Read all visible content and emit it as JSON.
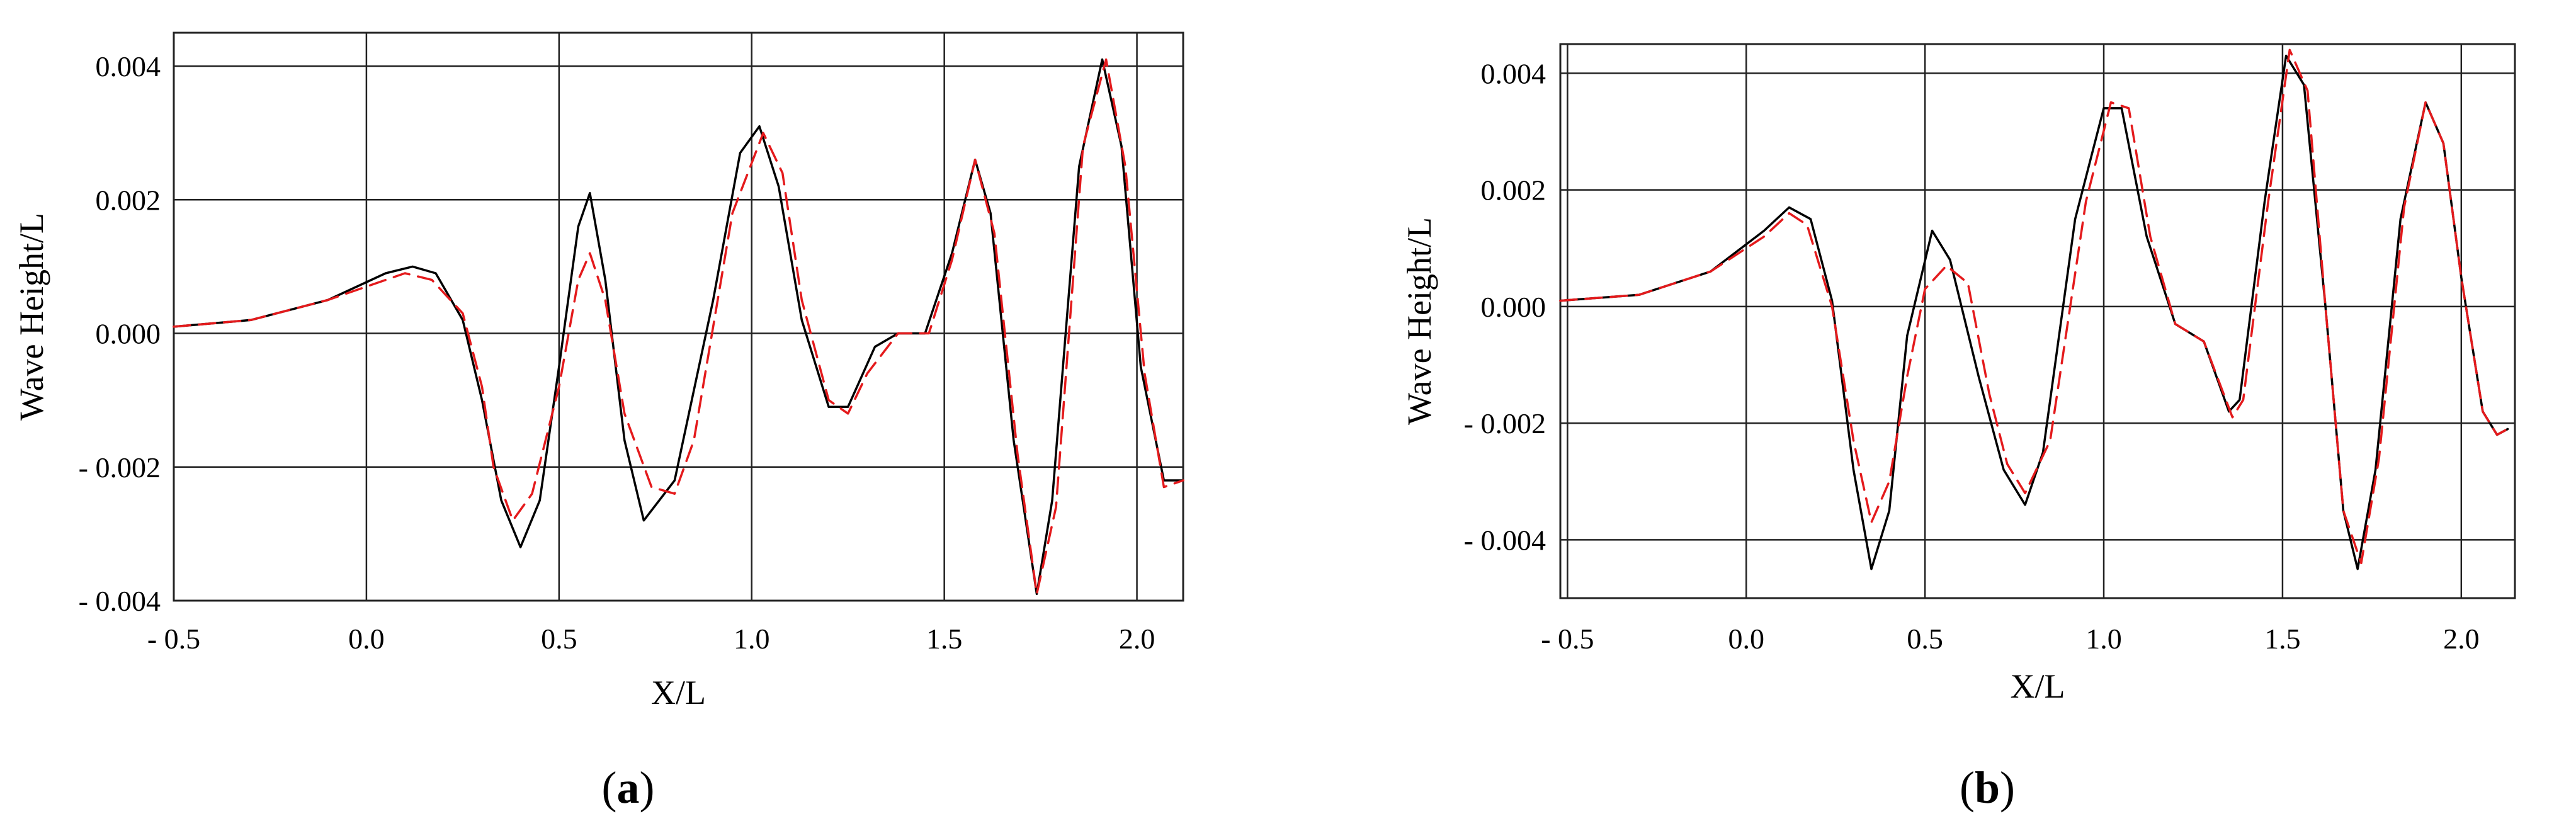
{
  "chart_data": [
    {
      "type": "line",
      "panel_label": "a",
      "xlabel": "X/L",
      "ylabel": "Wave Height/L",
      "xlim": [
        -0.5,
        2.12
      ],
      "ylim": [
        -0.004,
        0.0045
      ],
      "x_ticks": [
        -0.5,
        0.0,
        0.5,
        1.0,
        1.5,
        2.0
      ],
      "x_tick_labels": [
        "- 0.5",
        "0.0",
        "0.5",
        "1.0",
        "1.5",
        "2.0"
      ],
      "y_ticks": [
        -0.004,
        -0.002,
        0.0,
        0.002,
        0.004
      ],
      "y_tick_labels": [
        "- 0.004",
        "- 0.002",
        "0.000",
        "0.002",
        "0.004"
      ],
      "grid": true,
      "series": [
        {
          "color": "#000000",
          "dash": "solid",
          "points": [
            [
              -0.5,
              0.0001
            ],
            [
              -0.3,
              0.0002
            ],
            [
              -0.1,
              0.0005
            ],
            [
              0.05,
              0.0009
            ],
            [
              0.12,
              0.001
            ],
            [
              0.18,
              0.0009
            ],
            [
              0.25,
              0.0002
            ],
            [
              0.3,
              -0.001
            ],
            [
              0.35,
              -0.0025
            ],
            [
              0.4,
              -0.0032
            ],
            [
              0.45,
              -0.0025
            ],
            [
              0.5,
              -0.0005
            ],
            [
              0.55,
              0.0016
            ],
            [
              0.58,
              0.0021
            ],
            [
              0.62,
              0.0008
            ],
            [
              0.67,
              -0.0016
            ],
            [
              0.72,
              -0.0028
            ],
            [
              0.8,
              -0.0022
            ],
            [
              0.9,
              0.0005
            ],
            [
              0.97,
              0.0027
            ],
            [
              1.02,
              0.0031
            ],
            [
              1.07,
              0.0022
            ],
            [
              1.13,
              0.0002
            ],
            [
              1.2,
              -0.0011
            ],
            [
              1.25,
              -0.0011
            ],
            [
              1.32,
              -0.0002
            ],
            [
              1.38,
              0.0
            ],
            [
              1.45,
              0.0
            ],
            [
              1.52,
              0.0012
            ],
            [
              1.58,
              0.0026
            ],
            [
              1.62,
              0.0018
            ],
            [
              1.68,
              -0.0016
            ],
            [
              1.74,
              -0.0039
            ],
            [
              1.78,
              -0.0025
            ],
            [
              1.85,
              0.0025
            ],
            [
              1.91,
              0.0041
            ],
            [
              1.96,
              0.0028
            ],
            [
              2.01,
              -0.0005
            ],
            [
              2.07,
              -0.0022
            ],
            [
              2.12,
              -0.0022
            ]
          ]
        },
        {
          "color": "#e41a1c",
          "dash": "dashed",
          "points": [
            [
              -0.5,
              0.0001
            ],
            [
              -0.3,
              0.0002
            ],
            [
              -0.1,
              0.0005
            ],
            [
              0.05,
              0.0008
            ],
            [
              0.1,
              0.0009
            ],
            [
              0.17,
              0.0008
            ],
            [
              0.25,
              0.0003
            ],
            [
              0.3,
              -0.0008
            ],
            [
              0.33,
              -0.002
            ],
            [
              0.38,
              -0.0028
            ],
            [
              0.43,
              -0.0024
            ],
            [
              0.5,
              -0.0008
            ],
            [
              0.55,
              0.0008
            ],
            [
              0.58,
              0.0012
            ],
            [
              0.62,
              0.0005
            ],
            [
              0.67,
              -0.0012
            ],
            [
              0.74,
              -0.0023
            ],
            [
              0.8,
              -0.0024
            ],
            [
              0.85,
              -0.0016
            ],
            [
              0.95,
              0.0018
            ],
            [
              1.03,
              0.003
            ],
            [
              1.08,
              0.0024
            ],
            [
              1.13,
              0.0005
            ],
            [
              1.2,
              -0.001
            ],
            [
              1.25,
              -0.0012
            ],
            [
              1.3,
              -0.0006
            ],
            [
              1.38,
              0.0
            ],
            [
              1.46,
              0.0
            ],
            [
              1.52,
              0.0011
            ],
            [
              1.58,
              0.0026
            ],
            [
              1.63,
              0.0015
            ],
            [
              1.69,
              -0.0018
            ],
            [
              1.74,
              -0.0039
            ],
            [
              1.79,
              -0.0026
            ],
            [
              1.86,
              0.0028
            ],
            [
              1.92,
              0.0041
            ],
            [
              1.97,
              0.0025
            ],
            [
              2.02,
              -0.0006
            ],
            [
              2.07,
              -0.0023
            ],
            [
              2.12,
              -0.0022
            ]
          ]
        }
      ]
    },
    {
      "type": "line",
      "panel_label": "b",
      "xlabel": "X/L",
      "ylabel": "Wave Height/L",
      "xlim": [
        -0.52,
        2.15
      ],
      "ylim": [
        -0.005,
        0.0045
      ],
      "x_ticks": [
        -0.5,
        0.0,
        0.5,
        1.0,
        1.5,
        2.0
      ],
      "x_tick_labels": [
        "- 0.5",
        "0.0",
        "0.5",
        "1.0",
        "1.5",
        "2.0"
      ],
      "y_ticks": [
        -0.004,
        -0.002,
        0.0,
        0.002,
        0.004
      ],
      "y_tick_labels": [
        "- 0.004",
        "- 0.002",
        "0.000",
        "0.002",
        "0.004"
      ],
      "grid": true,
      "series": [
        {
          "color": "#000000",
          "dash": "solid",
          "points": [
            [
              -0.52,
              0.0001
            ],
            [
              -0.3,
              0.0002
            ],
            [
              -0.1,
              0.0006
            ],
            [
              0.05,
              0.0013
            ],
            [
              0.12,
              0.0017
            ],
            [
              0.18,
              0.0015
            ],
            [
              0.24,
              0.0001
            ],
            [
              0.3,
              -0.0028
            ],
            [
              0.35,
              -0.0045
            ],
            [
              0.4,
              -0.0035
            ],
            [
              0.45,
              -0.0005
            ],
            [
              0.52,
              0.0013
            ],
            [
              0.57,
              0.0008
            ],
            [
              0.65,
              -0.0012
            ],
            [
              0.72,
              -0.0028
            ],
            [
              0.78,
              -0.0034
            ],
            [
              0.83,
              -0.0025
            ],
            [
              0.92,
              0.0015
            ],
            [
              1.0,
              0.0034
            ],
            [
              1.05,
              0.0034
            ],
            [
              1.12,
              0.0012
            ],
            [
              1.2,
              -0.0003
            ],
            [
              1.28,
              -0.0006
            ],
            [
              1.35,
              -0.0018
            ],
            [
              1.38,
              -0.0016
            ],
            [
              1.45,
              0.0018
            ],
            [
              1.51,
              0.0043
            ],
            [
              1.56,
              0.0038
            ],
            [
              1.62,
              0.0
            ],
            [
              1.67,
              -0.0035
            ],
            [
              1.71,
              -0.0045
            ],
            [
              1.76,
              -0.0028
            ],
            [
              1.83,
              0.0015
            ],
            [
              1.9,
              0.0035
            ],
            [
              1.95,
              0.0028
            ],
            [
              2.0,
              0.0005
            ],
            [
              2.06,
              -0.0018
            ],
            [
              2.1,
              -0.0022
            ],
            [
              2.13,
              -0.0021
            ]
          ]
        },
        {
          "color": "#e41a1c",
          "dash": "dashed",
          "points": [
            [
              -0.52,
              0.0001
            ],
            [
              -0.3,
              0.0002
            ],
            [
              -0.1,
              0.0006
            ],
            [
              0.05,
              0.0012
            ],
            [
              0.12,
              0.0016
            ],
            [
              0.17,
              0.0014
            ],
            [
              0.24,
              0.0
            ],
            [
              0.3,
              -0.0023
            ],
            [
              0.35,
              -0.0037
            ],
            [
              0.4,
              -0.003
            ],
            [
              0.45,
              -0.0012
            ],
            [
              0.5,
              0.0003
            ],
            [
              0.56,
              0.0007
            ],
            [
              0.62,
              0.0004
            ],
            [
              0.68,
              -0.0015
            ],
            [
              0.73,
              -0.0027
            ],
            [
              0.78,
              -0.0032
            ],
            [
              0.85,
              -0.0023
            ],
            [
              0.95,
              0.0018
            ],
            [
              1.02,
              0.0035
            ],
            [
              1.07,
              0.0034
            ],
            [
              1.13,
              0.0012
            ],
            [
              1.2,
              -0.0003
            ],
            [
              1.28,
              -0.0006
            ],
            [
              1.36,
              -0.0019
            ],
            [
              1.39,
              -0.0016
            ],
            [
              1.46,
              0.0018
            ],
            [
              1.52,
              0.0044
            ],
            [
              1.57,
              0.0037
            ],
            [
              1.62,
              0.0
            ],
            [
              1.67,
              -0.0035
            ],
            [
              1.72,
              -0.0044
            ],
            [
              1.77,
              -0.0026
            ],
            [
              1.84,
              0.0017
            ],
            [
              1.9,
              0.0035
            ],
            [
              1.95,
              0.0028
            ],
            [
              2.0,
              0.0005
            ],
            [
              2.06,
              -0.0018
            ],
            [
              2.1,
              -0.0022
            ],
            [
              2.13,
              -0.0021
            ]
          ]
        }
      ]
    }
  ]
}
